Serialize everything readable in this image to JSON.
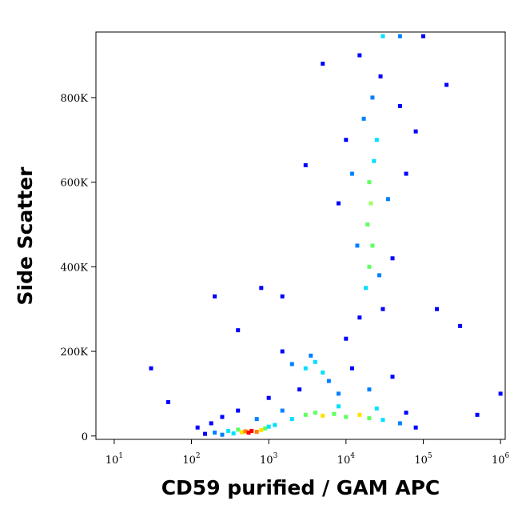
{
  "chart_data": {
    "type": "scatter",
    "x_label": "CD59 purified / GAM APC",
    "y_label": "Side Scatter",
    "x_log": true,
    "xlim": [
      5.8,
      1150000
    ],
    "ylim": [
      -8000,
      955000
    ],
    "xticks": [
      {
        "value": 10,
        "label": "10",
        "exponent": "1"
      },
      {
        "value": 100,
        "label": "10",
        "exponent": "2"
      },
      {
        "value": 1000,
        "label": "10",
        "exponent": "3"
      },
      {
        "value": 10000,
        "label": "10",
        "exponent": "4"
      },
      {
        "value": 100000,
        "label": "10",
        "exponent": "5"
      },
      {
        "value": 1000000,
        "label": "10",
        "exponent": "6"
      }
    ],
    "yticks": [
      0,
      {
        "value": 200000,
        "label": "200K"
      },
      {
        "value": 400000,
        "label": "400K"
      },
      {
        "value": 600000,
        "label": "600K"
      },
      {
        "value": 800000,
        "label": "800K"
      }
    ],
    "x": [
      150,
      200,
      250,
      300,
      350,
      400,
      450,
      500,
      550,
      600,
      700,
      800,
      900,
      1000,
      1200,
      120,
      180,
      250,
      400,
      700,
      2000,
      3000,
      4000,
      5000,
      7000,
      10000,
      15000,
      20000,
      30000,
      50000,
      1500,
      8000,
      25000,
      60000,
      80000,
      2000,
      3000,
      4000,
      5000,
      3500,
      6000,
      2500,
      8000,
      12000,
      1500,
      10000,
      20000,
      40000,
      1000,
      15000,
      18000,
      20000,
      22000,
      19000,
      21000,
      20000,
      23000,
      25000,
      17000,
      22000,
      28000,
      15000,
      30000,
      50000,
      100000,
      12000,
      35000,
      40000,
      10000,
      50000,
      14000,
      27000,
      30000,
      8000,
      60000,
      5000,
      80000,
      150000,
      300000,
      500000,
      1000000,
      30,
      50,
      200,
      800,
      400,
      200000,
      3000,
      1500
    ],
    "y": [
      5000,
      8000,
      3000,
      12000,
      6000,
      15000,
      9000,
      11000,
      8000,
      12000,
      10000,
      14000,
      18000,
      22000,
      26000,
      20000,
      30000,
      45000,
      60000,
      40000,
      40000,
      50000,
      55000,
      48000,
      52000,
      45000,
      50000,
      42000,
      38000,
      30000,
      60000,
      70000,
      65000,
      55000,
      20000,
      170000,
      160000,
      175000,
      150000,
      190000,
      130000,
      110000,
      100000,
      160000,
      200000,
      230000,
      110000,
      140000,
      90000,
      280000,
      350000,
      400000,
      450000,
      500000,
      550000,
      600000,
      650000,
      700000,
      750000,
      800000,
      850000,
      900000,
      945000,
      945000,
      945000,
      620000,
      560000,
      420000,
      700000,
      780000,
      450000,
      380000,
      300000,
      550000,
      620000,
      880000,
      720000,
      300000,
      260000,
      50000,
      100000,
      160000,
      80000,
      330000,
      350000,
      250000,
      830000,
      640000,
      330000
    ],
    "colors": [
      "#0000ff",
      "#0080ff",
      "#0080ff",
      "#00e0ff",
      "#00e0ff",
      "#60ff60",
      "#ffe000",
      "#ff8000",
      "#ff0000",
      "#ff0000",
      "#ff8000",
      "#ffe000",
      "#60ff60",
      "#00e0ff",
      "#00e0ff",
      "#0000ff",
      "#0000ff",
      "#0000ff",
      "#0000ff",
      "#0080ff",
      "#00e0ff",
      "#60ff60",
      "#60ff60",
      "#ffe000",
      "#60ff60",
      "#60ff60",
      "#ffe000",
      "#60ff60",
      "#00e0ff",
      "#0080ff",
      "#0080ff",
      "#00e0ff",
      "#00e0ff",
      "#0000ff",
      "#0000ff",
      "#0080ff",
      "#00e0ff",
      "#00e0ff",
      "#00e0ff",
      "#0080ff",
      "#0080ff",
      "#0000ff",
      "#0080ff",
      "#0000ff",
      "#0000ff",
      "#0000ff",
      "#0080ff",
      "#0000ff",
      "#0000ff",
      "#0000ff",
      "#00e0ff",
      "#60ff60",
      "#60ff60",
      "#60ff60",
      "#a0ff60",
      "#60ff60",
      "#00e0ff",
      "#00e0ff",
      "#0080ff",
      "#0080ff",
      "#0000ff",
      "#0000ff",
      "#00e0ff",
      "#0080ff",
      "#0000ff",
      "#0080ff",
      "#0080ff",
      "#0000ff",
      "#0000ff",
      "#0000ff",
      "#0080ff",
      "#0080ff",
      "#0000ff",
      "#0000ff",
      "#0000ff",
      "#0000ff",
      "#0000ff",
      "#0000ff",
      "#0000ff",
      "#0000ff",
      "#0000ff",
      "#0000ff",
      "#0000ff",
      "#0000ff",
      "#0000ff",
      "#0000ff",
      "#0000ff",
      "#0000ff",
      "#0000ff"
    ]
  }
}
